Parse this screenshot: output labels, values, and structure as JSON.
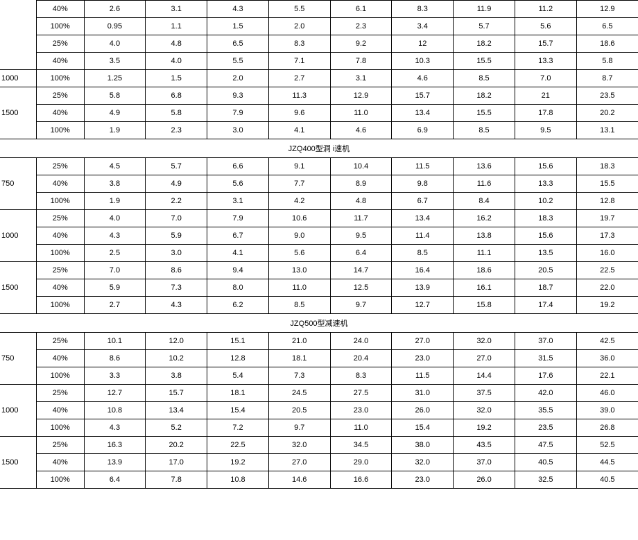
{
  "section_titles": {
    "s1": "JZQ400型洞    i速机",
    "s2": "JZQ500型减速机"
  },
  "labels": {
    "l1000": "1000",
    "l1500": "1500",
    "l750": "750"
  },
  "pct": {
    "p25": "25%",
    "p40": "40%",
    "p100": "100%"
  },
  "top": {
    "r1": [
      "40%",
      "2.6",
      "3.1",
      "4.3",
      "5.5",
      "6.1",
      "8.3",
      "11.9",
      "11.2",
      "12.9"
    ],
    "r2": [
      "100%",
      "0.95",
      "1.1",
      "1.5",
      "2.0",
      "2.3",
      "3.4",
      "5.7",
      "5.6",
      "6.5"
    ],
    "r3": [
      "25%",
      "4.0",
      "4.8",
      "6.5",
      "8.3",
      "9.2",
      "12",
      "18.2",
      "15.7",
      "18.6"
    ],
    "r4": [
      "40%",
      "3.5",
      "4.0",
      "5.5",
      "7.1",
      "7.8",
      "10.3",
      "15.5",
      "13.3",
      "5.8"
    ],
    "r5": [
      "100%",
      "1.25",
      "1.5",
      "2.0",
      "2.7",
      "3.1",
      "4.6",
      "8.5",
      "7.0",
      "8.7"
    ],
    "r6": [
      "25%",
      "5.8",
      "6.8",
      "9.3",
      "11.3",
      "12.9",
      "15.7",
      "18.2",
      "21",
      "23.5"
    ],
    "r7": [
      "40%",
      "4.9",
      "5.8",
      "7.9",
      "9.6",
      "11.0",
      "13.4",
      "15.5",
      "17.8",
      "20.2"
    ],
    "r8": [
      "100%",
      "1.9",
      "2.3",
      "3.0",
      "4.1",
      "4.6",
      "6.9",
      "8.5",
      "9.5",
      "13.1"
    ]
  },
  "g400": {
    "g750": {
      "r1": [
        "4.5",
        "5.7",
        "6.6",
        "9.1",
        "10.4",
        "11.5",
        "13.6",
        "15.6",
        "18.3"
      ],
      "r2": [
        "3.8",
        "4.9",
        "5.6",
        "7.7",
        "8.9",
        "9.8",
        "11.6",
        "13.3",
        "15.5"
      ],
      "r3": [
        "1.9",
        "2.2",
        "3.1",
        "4.2",
        "4.8",
        "6.7",
        "8.4",
        "10.2",
        "12.8"
      ]
    },
    "g1000": {
      "r1": [
        "4.0",
        "7.0",
        "7.9",
        "10.6",
        "11.7",
        "13.4",
        "16.2",
        "18.3",
        "19.7"
      ],
      "r2": [
        "4.3",
        "5.9",
        "6.7",
        "9.0",
        "9.5",
        "11.4",
        "13.8",
        "15.6",
        "17.3"
      ],
      "r3": [
        "2.5",
        "3.0",
        "4.1",
        "5.6",
        "6.4",
        "8.5",
        "11.1",
        "13.5",
        "16.0"
      ]
    },
    "g1500": {
      "r1": [
        "7.0",
        "8.6",
        "9.4",
        "13.0",
        "14.7",
        "16.4",
        "18.6",
        "20.5",
        "22.5"
      ],
      "r2": [
        "5.9",
        "7.3",
        "8.0",
        "11.0",
        "12.5",
        "13.9",
        "16.1",
        "18.7",
        "22.0"
      ],
      "r3": [
        "2.7",
        "4.3",
        "6.2",
        "8.5",
        "9.7",
        "12.7",
        "15.8",
        "17.4",
        "19.2"
      ]
    }
  },
  "g500": {
    "g750": {
      "r1": [
        "10.1",
        "12.0",
        "15.1",
        "21.0",
        "24.0",
        "27.0",
        "32.0",
        "37.0",
        "42.5"
      ],
      "r2": [
        "8.6",
        "10.2",
        "12.8",
        "18.1",
        "20.4",
        "23.0",
        "27.0",
        "31.5",
        "36.0"
      ],
      "r3": [
        "3.3",
        "3.8",
        "5.4",
        "7.3",
        "8.3",
        "11.5",
        "14.4",
        "17.6",
        "22.1"
      ]
    },
    "g1000": {
      "r1": [
        "12.7",
        "15.7",
        "18.1",
        "24.5",
        "27.5",
        "31.0",
        "37.5",
        "42.0",
        "46.0"
      ],
      "r2": [
        "10.8",
        "13.4",
        "15.4",
        "20.5",
        "23.0",
        "26.0",
        "32.0",
        "35.5",
        "39.0"
      ],
      "r3": [
        "4.3",
        "5.2",
        "7.2",
        "9.7",
        "11.0",
        "15.4",
        "19.2",
        "23.5",
        "26.8"
      ]
    },
    "g1500": {
      "r1": [
        "16.3",
        "20.2",
        "22.5",
        "32.0",
        "34.5",
        "38.0",
        "43.5",
        "47.5",
        "52.5"
      ],
      "r2": [
        "13.9",
        "17.0",
        "19.2",
        "27.0",
        "29.0",
        "32.0",
        "37.0",
        "40.5",
        "44.5"
      ],
      "r3": [
        "6.4",
        "7.8",
        "10.8",
        "14.6",
        "16.6",
        "23.0",
        "26.0",
        "32.5",
        "40.5"
      ]
    }
  }
}
